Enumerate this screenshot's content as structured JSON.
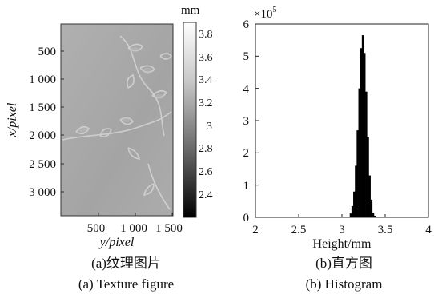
{
  "panels": {
    "a": {
      "caption_cn": "(a)纹理图片",
      "caption_en": "(a)  Texture figure"
    },
    "b": {
      "caption_cn": "(b)直方图",
      "caption_en": "(b)  Histogram"
    }
  },
  "chart_data": [
    {
      "type": "heatmap",
      "xlabel": "y/pixel",
      "ylabel": "x/pixel",
      "x_ticks": [
        "500",
        "1 000",
        "1 500"
      ],
      "y_ticks": [
        "500",
        "1 000",
        "1 500",
        "2 000",
        "2 500",
        "3 000"
      ],
      "colorbar": {
        "unit_label": "mm",
        "ticks": [
          "3.8",
          "3.6",
          "3.4",
          "3.2",
          "3",
          "2.8",
          "2.6",
          "2.4"
        ],
        "range": [
          2.2,
          3.9
        ],
        "colormap": "gray"
      },
      "background_color": "#a9a9a9"
    },
    {
      "type": "bar",
      "xlabel": "Height/mm",
      "ylabel": "",
      "y_multiplier_label": "×10",
      "y_multiplier_exp": "5",
      "xlim": [
        2,
        4
      ],
      "ylim": [
        0,
        6
      ],
      "x_ticks": [
        "2",
        "2.5",
        "3",
        "3.5",
        "4"
      ],
      "y_ticks": [
        "0",
        "1",
        "2",
        "3",
        "4",
        "5",
        "6"
      ],
      "bin_width": 0.02,
      "bins": [
        {
          "x": 3.1,
          "y": 0.12
        },
        {
          "x": 3.12,
          "y": 0.35
        },
        {
          "x": 3.14,
          "y": 0.8
        },
        {
          "x": 3.16,
          "y": 1.6
        },
        {
          "x": 3.18,
          "y": 2.7
        },
        {
          "x": 3.2,
          "y": 4.0
        },
        {
          "x": 3.22,
          "y": 5.25
        },
        {
          "x": 3.24,
          "y": 5.65
        },
        {
          "x": 3.26,
          "y": 5.1
        },
        {
          "x": 3.28,
          "y": 3.9
        },
        {
          "x": 3.3,
          "y": 2.5
        },
        {
          "x": 3.32,
          "y": 1.3
        },
        {
          "x": 3.34,
          "y": 0.55
        },
        {
          "x": 3.36,
          "y": 0.15
        },
        {
          "x": 3.38,
          "y": 0.05
        }
      ],
      "bar_color": "#000000"
    }
  ]
}
